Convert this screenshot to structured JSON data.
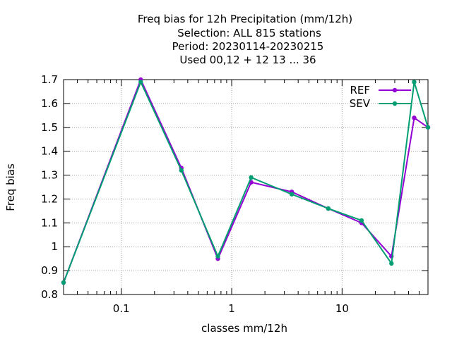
{
  "chart_data": {
    "type": "line",
    "title_lines": [
      "Freq bias  for 12h Precipitation (mm/12h)",
      "Selection: ALL    815 stations",
      "Period: 20230114-20230215",
      "Used  00,12  + 12 13 ... 36"
    ],
    "xlabel": "classes mm/12h",
    "ylabel": "Freq bias",
    "x_scale": "log",
    "xlim": [
      0.03,
      60
    ],
    "ylim": [
      0.8,
      1.7
    ],
    "grid": true,
    "legend_position": "top-right",
    "x_ticks": [
      {
        "value": 0.1,
        "label": "0.1"
      },
      {
        "value": 1,
        "label": "1"
      },
      {
        "value": 10,
        "label": "10"
      }
    ],
    "y_ticks": [
      {
        "value": 0.8,
        "label": "0.8"
      },
      {
        "value": 0.9,
        "label": "0.9"
      },
      {
        "value": 1.0,
        "label": "1"
      },
      {
        "value": 1.1,
        "label": "1.1"
      },
      {
        "value": 1.2,
        "label": "1.2"
      },
      {
        "value": 1.3,
        "label": "1.3"
      },
      {
        "value": 1.4,
        "label": "1.4"
      },
      {
        "value": 1.5,
        "label": "1.5"
      },
      {
        "value": 1.6,
        "label": "1.6"
      },
      {
        "value": 1.7,
        "label": "1.7"
      }
    ],
    "x": [
      0.03,
      0.15,
      0.35,
      0.75,
      1.5,
      3.5,
      7.5,
      15,
      28,
      45,
      60
    ],
    "series": [
      {
        "name": "REF",
        "color": "#9400d3",
        "values": [
          0.85,
          1.7,
          1.33,
          0.95,
          1.27,
          1.23,
          1.16,
          1.1,
          0.96,
          1.54,
          1.5
        ]
      },
      {
        "name": "SEV",
        "color": "#009e73",
        "values": [
          0.85,
          1.69,
          1.32,
          0.96,
          1.29,
          1.22,
          1.16,
          1.11,
          0.93,
          1.69,
          1.5
        ]
      }
    ]
  }
}
